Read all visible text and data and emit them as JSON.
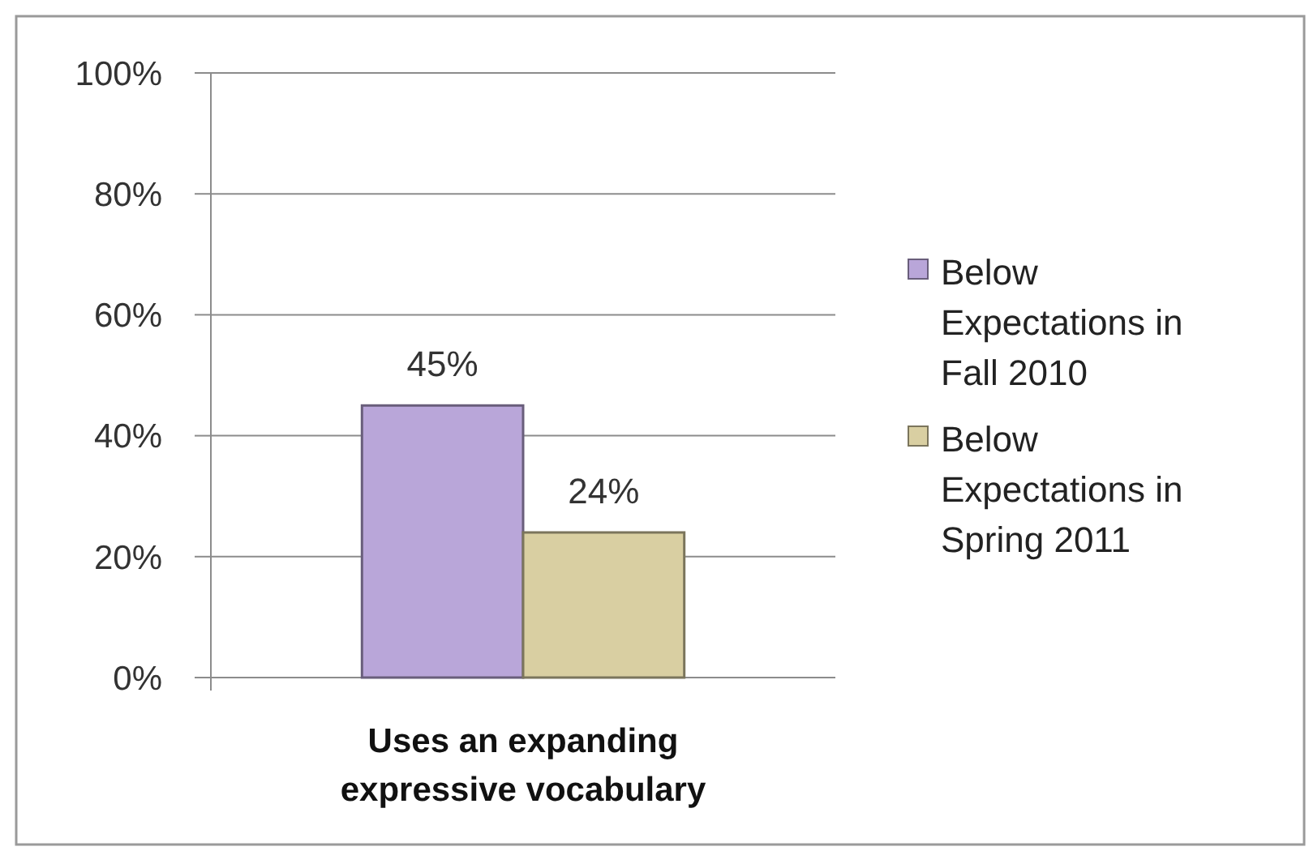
{
  "chart_data": {
    "type": "bar",
    "categories": [
      "Uses an expanding expressive vocabulary"
    ],
    "series": [
      {
        "name": "Below Expectations in Fall 2010",
        "color": "#b9a6d9",
        "values": [
          45
        ],
        "value_labels": [
          "45%"
        ]
      },
      {
        "name": "Below Expectations in Spring 2011",
        "color": "#d9cfa2",
        "values": [
          24
        ],
        "value_labels": [
          "24%"
        ]
      }
    ],
    "ylim": [
      0,
      100
    ],
    "yticks": [
      {
        "value": 0,
        "label": "0%"
      },
      {
        "value": 20,
        "label": "20%"
      },
      {
        "value": 40,
        "label": "40%"
      },
      {
        "value": 60,
        "label": "60%"
      },
      {
        "value": 80,
        "label": "80%"
      },
      {
        "value": 100,
        "label": "100%"
      }
    ],
    "grid": "y",
    "legend": "right"
  }
}
